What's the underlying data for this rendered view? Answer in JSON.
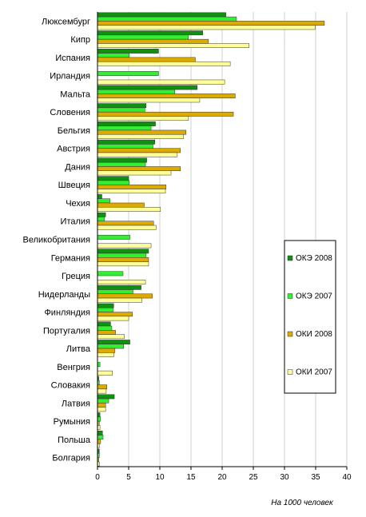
{
  "chart_data": {
    "type": "bar",
    "orientation": "horizontal",
    "categories": [
      "Люксембург",
      "Кипр",
      "Испания",
      "Ирландия",
      "Мальта",
      "Словения",
      "Бельгия",
      "Австрия",
      "Дания",
      "Швеция",
      "Чехия",
      "Италия",
      "Великобритания",
      "Германия",
      "Греция",
      "Нидерланды",
      "Финляндия",
      "Португалия",
      "Литва",
      "Венгрия",
      "Словакия",
      "Латвия",
      "Румыния",
      "Польша",
      "Болгария"
    ],
    "series": [
      {
        "name": "ОКЭ 2008",
        "color": "#109010",
        "values": [
          20.6,
          16.9,
          9.8,
          null,
          16.0,
          7.8,
          9.3,
          9.2,
          7.9,
          5.0,
          0.7,
          1.3,
          null,
          8.2,
          null,
          7.0,
          2.6,
          2.1,
          5.2,
          null,
          0.2,
          2.7,
          0.4,
          0.8,
          0.3
        ]
      },
      {
        "name": "ОКЭ 2007",
        "color": "#33ee33",
        "values": [
          22.3,
          14.6,
          5.1,
          9.8,
          12.4,
          7.6,
          8.6,
          8.9,
          7.7,
          5.1,
          2.0,
          1.1,
          5.2,
          7.8,
          4.1,
          5.7,
          2.5,
          2.3,
          4.2,
          0.4,
          0.3,
          1.8,
          0.5,
          0.9,
          0.3
        ]
      },
      {
        "name": "ОКИ 2008",
        "color": "#ddaa00",
        "values": [
          36.4,
          17.8,
          15.7,
          null,
          22.1,
          21.8,
          14.2,
          13.3,
          13.3,
          11.0,
          7.5,
          9.0,
          null,
          8.2,
          null,
          8.8,
          5.6,
          2.9,
          2.8,
          null,
          1.5,
          1.3,
          0.3,
          0.5,
          0.2
        ]
      },
      {
        "name": "ОКИ 2007",
        "color": "#ffff99",
        "values": [
          34.9,
          24.3,
          21.3,
          20.4,
          16.4,
          14.6,
          13.8,
          12.8,
          11.8,
          10.9,
          10.1,
          9.4,
          8.6,
          8.2,
          7.7,
          7.1,
          5.0,
          4.3,
          2.6,
          2.4,
          1.4,
          1.3,
          0.4,
          0.3,
          0.3
        ]
      }
    ],
    "xlim": [
      0,
      40
    ],
    "xticks": [
      "0",
      "5",
      "10",
      "15",
      "20",
      "25",
      "30",
      "35",
      "40"
    ],
    "xlabel": "На 1000 человек",
    "grid": true,
    "legend_position": "right"
  }
}
